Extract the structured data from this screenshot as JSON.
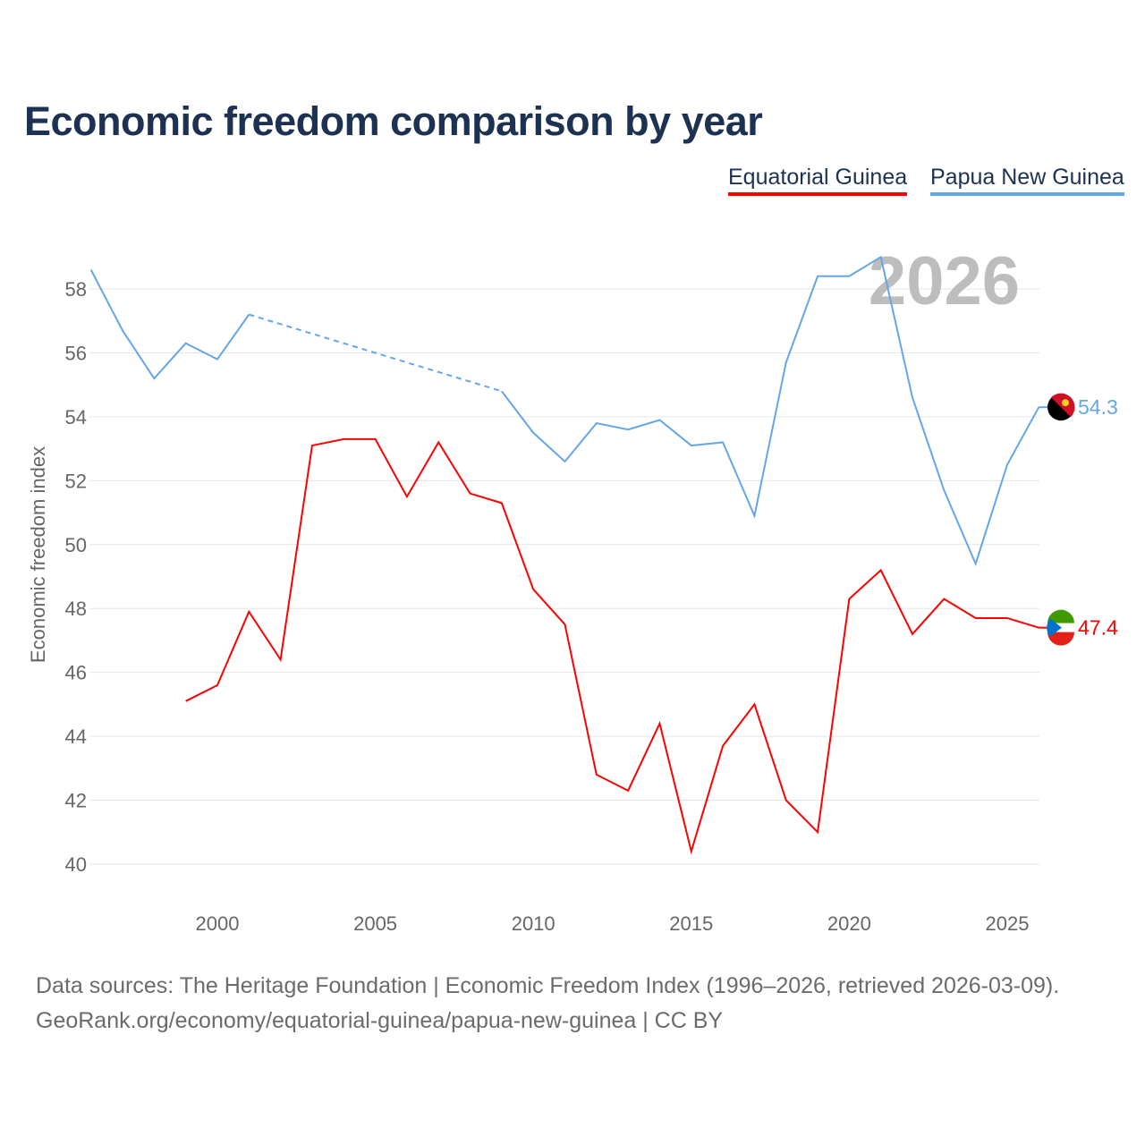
{
  "title": "Economic freedom comparison by year",
  "legend": [
    {
      "label": "Equatorial Guinea",
      "color": "#ff0000"
    },
    {
      "label": "Papua New Guinea",
      "color": "#64a6e8"
    }
  ],
  "source_line1": "Data sources: The Heritage Foundation | Economic Freedom Index (1996–2026, retrieved 2026-03-09).",
  "source_line2": "GeoRank.org/economy/equatorial-guinea/papua-new-guinea | CC BY",
  "chart_data": {
    "type": "line",
    "title": "Economic freedom comparison by year",
    "ylabel": "Economic freedom index",
    "xlabel": "",
    "year_watermark": "2026",
    "xlim": [
      1996,
      2026
    ],
    "ylim": [
      39,
      59.5
    ],
    "xticks": [
      2000,
      2005,
      2010,
      2015,
      2020,
      2025
    ],
    "yticks": [
      40,
      42,
      44,
      46,
      48,
      50,
      52,
      54,
      56,
      58
    ],
    "grid": true,
    "legend_position": "top-right",
    "series": [
      {
        "name": "Equatorial Guinea",
        "color": "#ff0000",
        "end_label": "47.4",
        "x": [
          1999,
          2000,
          2001,
          2002,
          2003,
          2004,
          2005,
          2006,
          2007,
          2008,
          2009,
          2010,
          2011,
          2012,
          2013,
          2014,
          2015,
          2016,
          2017,
          2018,
          2019,
          2020,
          2021,
          2022,
          2023,
          2024,
          2025,
          2026
        ],
        "y": [
          45.1,
          45.6,
          47.9,
          46.4,
          53.1,
          53.3,
          53.3,
          51.5,
          53.2,
          51.6,
          51.3,
          48.6,
          47.5,
          42.8,
          42.3,
          44.4,
          40.4,
          43.7,
          45.0,
          42.0,
          41.0,
          48.3,
          49.2,
          47.2,
          48.3,
          47.7,
          47.7,
          47.4
        ]
      },
      {
        "name": "Papua New Guinea",
        "color": "#64a6e8",
        "end_label": "54.3",
        "x": [
          1996,
          1997,
          1998,
          1999,
          2000,
          2001,
          2009,
          2010,
          2011,
          2012,
          2013,
          2014,
          2015,
          2016,
          2017,
          2018,
          2019,
          2020,
          2021,
          2022,
          2023,
          2024,
          2025,
          2026
        ],
        "y": [
          58.6,
          56.7,
          55.2,
          56.3,
          55.8,
          57.2,
          54.8,
          53.5,
          52.6,
          53.8,
          53.6,
          53.9,
          53.1,
          53.2,
          50.9,
          55.7,
          58.4,
          58.4,
          59.0,
          54.6,
          51.7,
          49.4,
          52.5,
          54.3
        ],
        "gap": [
          2001,
          2009
        ]
      }
    ]
  }
}
